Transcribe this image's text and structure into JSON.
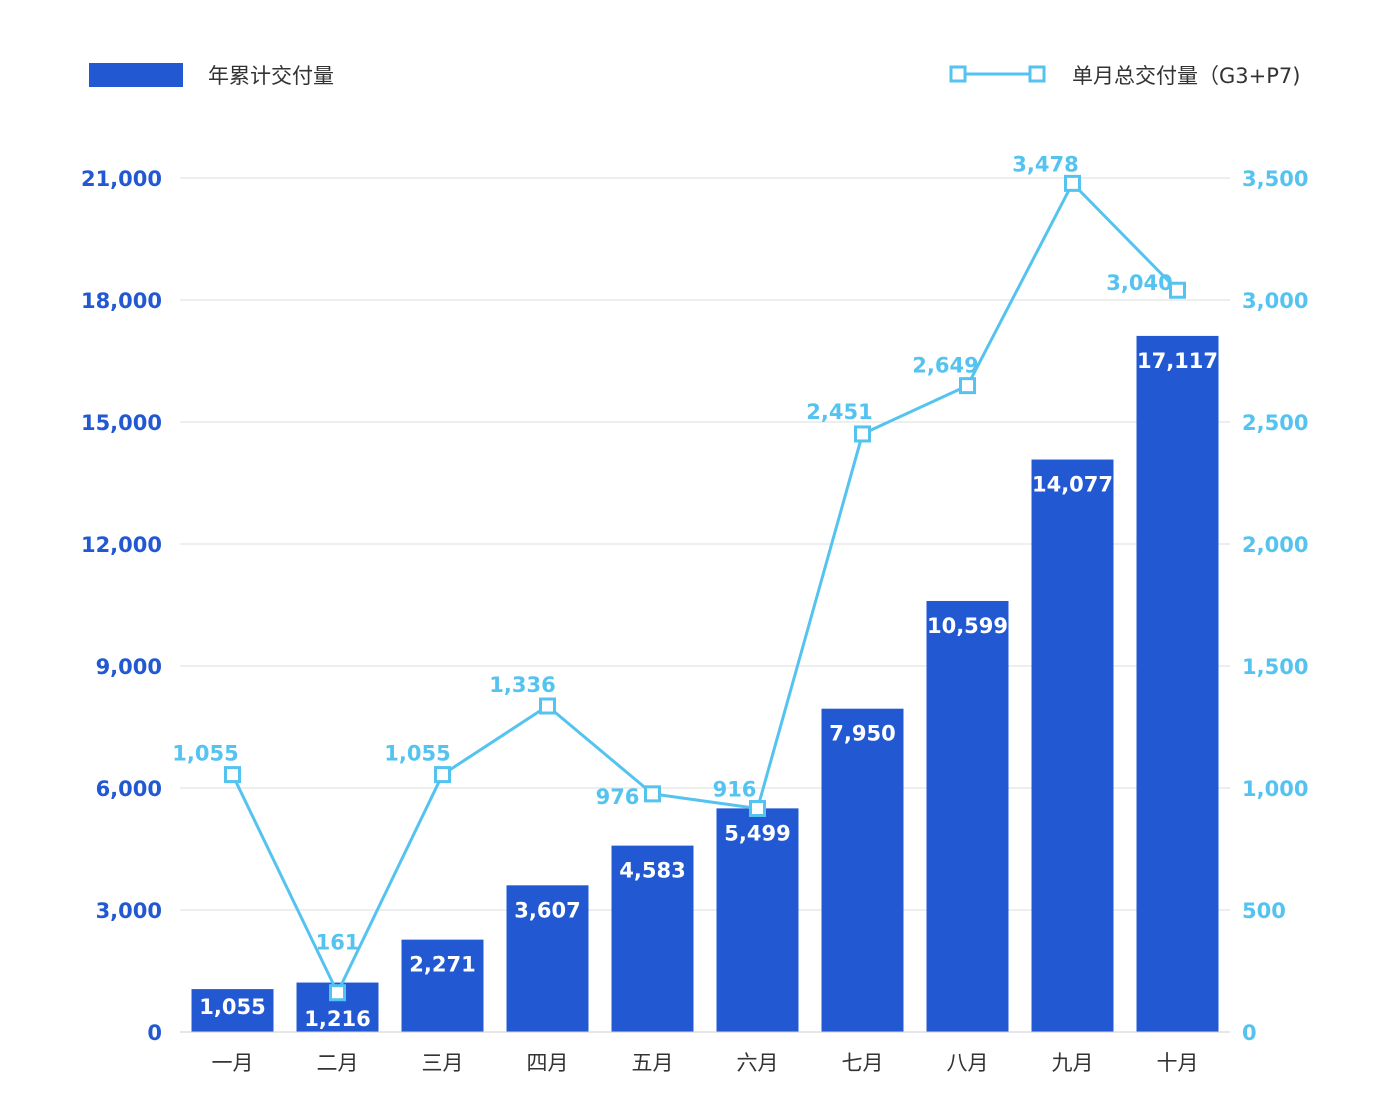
{
  "chart_data": {
    "type": "bar",
    "categories": [
      "一月",
      "二月",
      "三月",
      "四月",
      "五月",
      "六月",
      "七月",
      "八月",
      "九月",
      "十月"
    ],
    "series": [
      {
        "name": "年累计交付量",
        "type": "bar",
        "axis": "left",
        "values": [
          1055,
          1216,
          2271,
          3607,
          4583,
          5499,
          7950,
          10599,
          14077,
          17117
        ],
        "labels": [
          "1,055",
          "1,216",
          "2,271",
          "3,607",
          "4,583",
          "5,499",
          "7,950",
          "10,599",
          "14,077",
          "17,117"
        ],
        "color": "#2259d3"
      },
      {
        "name": "单月总交付量（G3+P7)",
        "type": "line",
        "axis": "right",
        "values": [
          1055,
          161,
          1055,
          1336,
          976,
          916,
          2451,
          2649,
          3478,
          3040
        ],
        "labels": [
          "1,055",
          "161",
          "1,055",
          "1,336",
          "976",
          "916",
          "2,451",
          "2,649",
          "3,478",
          "3,040"
        ],
        "color": "#55c3f0"
      }
    ],
    "y_left": {
      "ylim": [
        0,
        21000
      ],
      "ticks": [
        "0",
        "3,000",
        "6,000",
        "9,000",
        "12,000",
        "15,000",
        "18,000",
        "21,000"
      ],
      "color": "#2259d3"
    },
    "y_right": {
      "ylim": [
        0,
        3500
      ],
      "ticks": [
        "0",
        "500",
        "1,000",
        "1,500",
        "2,000",
        "2,500",
        "3,000",
        "3,500"
      ],
      "color": "#55c3f0"
    },
    "grid": true,
    "legend": "top"
  }
}
